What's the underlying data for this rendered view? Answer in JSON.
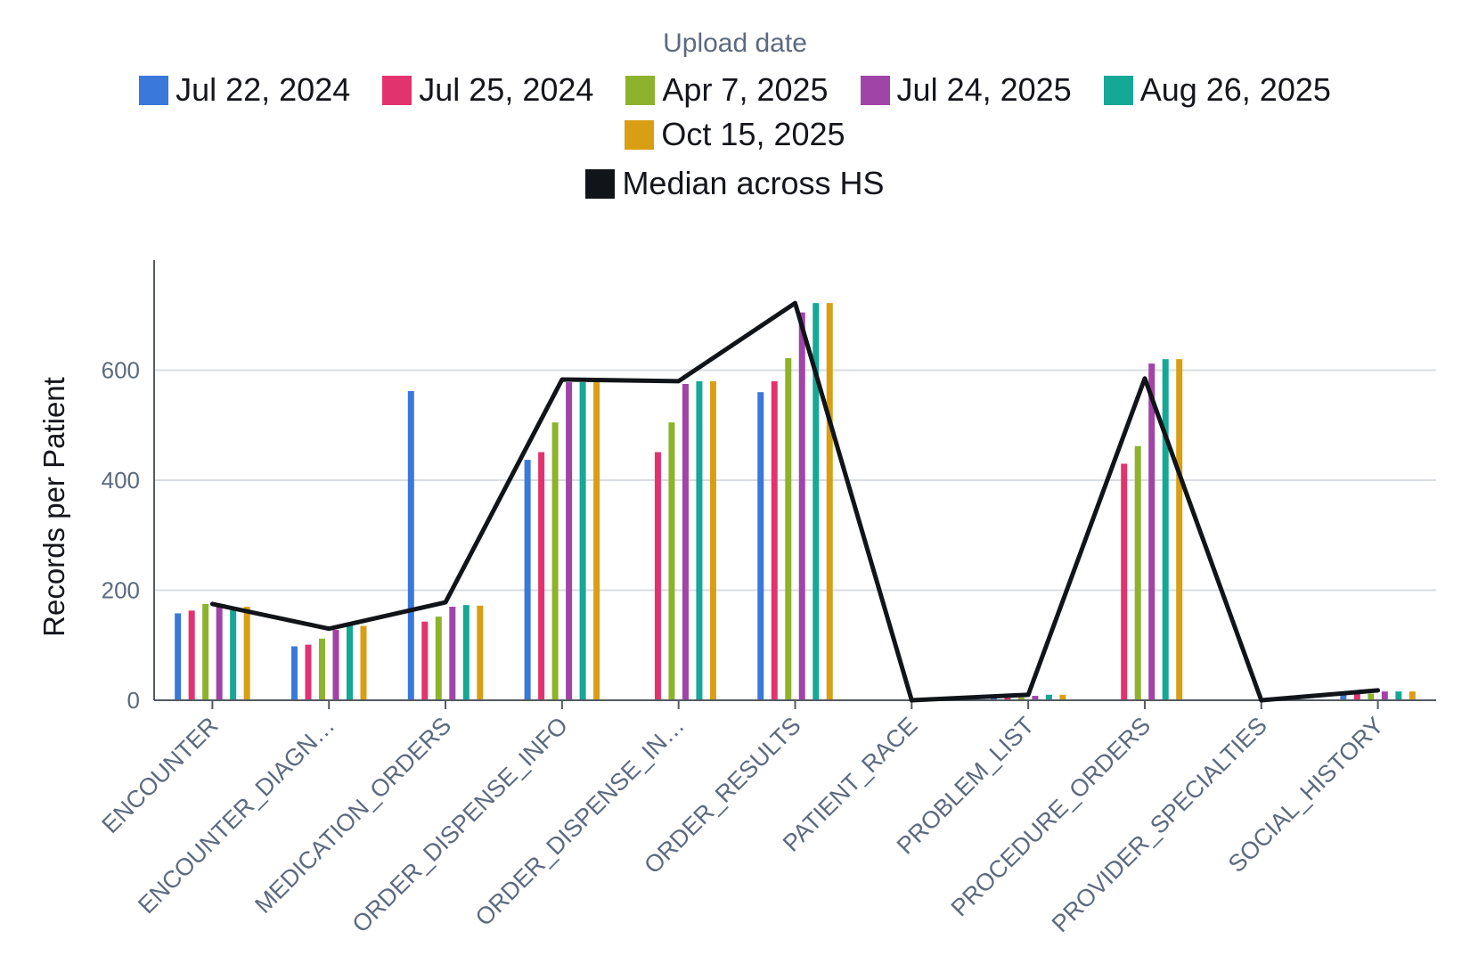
{
  "chart_data": {
    "type": "bar",
    "title": "",
    "legend_title": "Upload date",
    "xlabel": "",
    "ylabel": "Records per Patient",
    "ylim": [
      0,
      800
    ],
    "yticks": [
      0,
      200,
      400,
      600
    ],
    "grid": true,
    "legend_position": "top",
    "categories": [
      "ENCOUNTER",
      "ENCOUNTER_DIAGN…",
      "MEDICATION_ORDERS",
      "ORDER_DISPENSE_INFO",
      "ORDER_DISPENSE_IN…",
      "ORDER_RESULTS",
      "PATIENT_RACE",
      "PROBLEM_LIST",
      "PROCEDURE_ORDERS",
      "PROVIDER_SPECIALTIES",
      "SOCIAL_HISTORY"
    ],
    "series": [
      {
        "name": "Jul 22, 2024",
        "color": "#3a78db",
        "values": [
          158,
          98,
          562,
          437,
          null,
          560,
          0,
          5,
          null,
          0,
          12
        ]
      },
      {
        "name": "Jul 25, 2024",
        "color": "#e2336f",
        "values": [
          163,
          101,
          143,
          451,
          451,
          580,
          0,
          5,
          430,
          0,
          12
        ]
      },
      {
        "name": "Apr 7, 2025",
        "color": "#8db32c",
        "values": [
          175,
          112,
          152,
          505,
          505,
          622,
          0,
          5,
          462,
          0,
          12
        ]
      },
      {
        "name": "Jul 24, 2025",
        "color": "#a144a8",
        "values": [
          173,
          128,
          170,
          578,
          575,
          705,
          0,
          8,
          612,
          0,
          16
        ]
      },
      {
        "name": "Aug 26, 2025",
        "color": "#15a896",
        "values": [
          168,
          140,
          173,
          578,
          580,
          722,
          0,
          10,
          620,
          0,
          16
        ]
      },
      {
        "name": "Oct 15, 2025",
        "color": "#d99f14",
        "values": [
          170,
          135,
          172,
          578,
          580,
          722,
          0,
          10,
          620,
          0,
          16
        ]
      }
    ],
    "line": {
      "name": "Median across HS",
      "color": "#111418",
      "values": [
        175,
        130,
        178,
        583,
        580,
        722,
        0,
        10,
        585,
        0,
        18
      ]
    }
  }
}
